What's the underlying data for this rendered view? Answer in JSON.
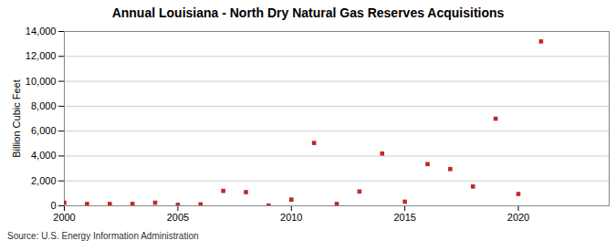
{
  "chart_data": {
    "type": "scatter",
    "title": "Annual Louisiana - North Dry Natural Gas Reserves Acquisitions",
    "y_label": "Billion Cubic Feet",
    "source": "Source: U.S. Energy Information Administration",
    "x": [
      2000,
      2001,
      2002,
      2003,
      2004,
      2005,
      2006,
      2007,
      2008,
      2009,
      2010,
      2011,
      2012,
      2013,
      2014,
      2015,
      2016,
      2017,
      2018,
      2019,
      2020,
      2021
    ],
    "values": [
      250,
      150,
      150,
      150,
      250,
      80,
      120,
      1200,
      1100,
      20,
      500,
      5050,
      150,
      1150,
      4200,
      330,
      3350,
      2950,
      1550,
      7000,
      950,
      13200
    ],
    "color": "#c0282a",
    "marker": "square",
    "xlim": [
      2000,
      2024
    ],
    "xticks": [
      2000,
      2005,
      2010,
      2015,
      2020
    ],
    "ylim": [
      0,
      14000
    ],
    "yticks": [
      0,
      {
        "value": 2000,
        "label": "2,000"
      },
      {
        "value": 4000,
        "label": "4,000"
      },
      {
        "value": 6000,
        "label": "6,000"
      },
      {
        "value": 8000,
        "label": "8,000"
      },
      {
        "value": 10000,
        "label": "10,000"
      },
      {
        "value": 12000,
        "label": "12,000"
      },
      {
        "value": 14000,
        "label": "14,000"
      }
    ],
    "grid": true
  }
}
